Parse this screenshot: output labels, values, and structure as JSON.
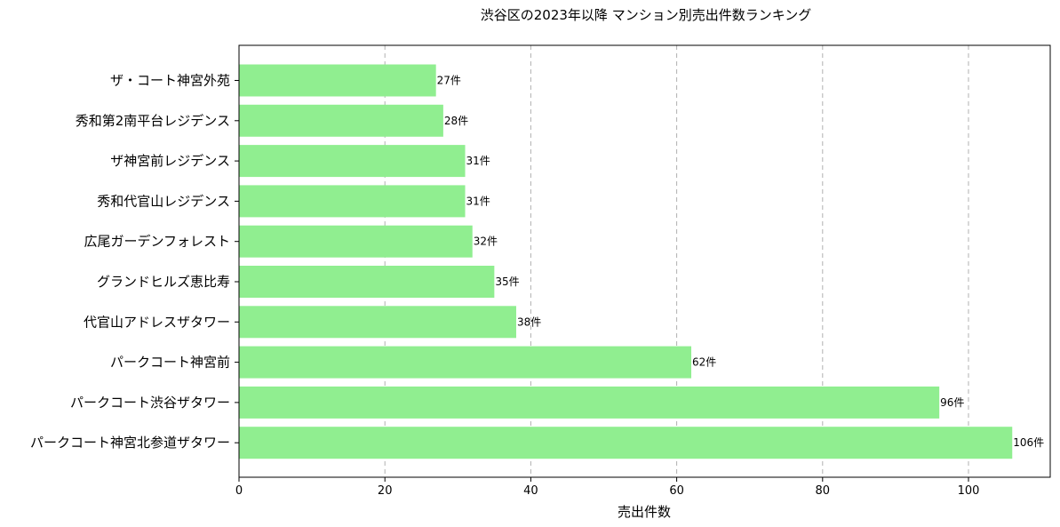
{
  "chart_data": {
    "type": "bar",
    "orientation": "horizontal",
    "title": "渋谷区の2023年以降 マンション別売出件数ランキング",
    "xlabel": "売出件数",
    "ylabel": "",
    "xlim": [
      0,
      112
    ],
    "xticks": [
      0,
      20,
      40,
      60,
      80,
      100
    ],
    "grid": "x-dashed",
    "bar_color": "#90ee90",
    "value_suffix": "件",
    "categories": [
      "ザ・コート神宮外苑",
      "秀和第2南平台レジデンス",
      "ザ神宮前レジデンス",
      "秀和代官山レジデンス",
      "広尾ガーデンフォレスト",
      "グランドヒルズ恵比寿",
      "代官山アドレスザタワー",
      "パークコート神宮前",
      "パークコート渋谷ザタワー",
      "パークコート神宮北参道ザタワー"
    ],
    "values": [
      27,
      28,
      31,
      31,
      32,
      35,
      38,
      62,
      96,
      106
    ],
    "data_labels": [
      "27件",
      "28件",
      "31件",
      "31件",
      "32件",
      "35件",
      "38件",
      "62件",
      "96件",
      "106件"
    ]
  }
}
